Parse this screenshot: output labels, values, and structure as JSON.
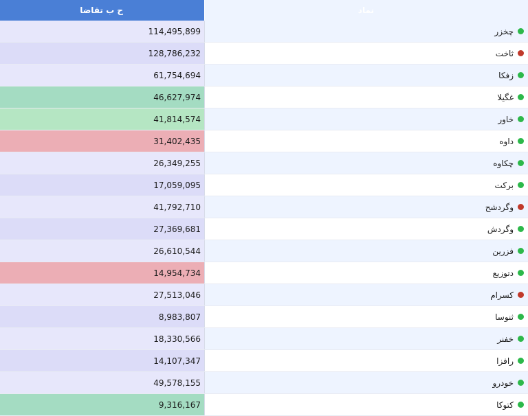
{
  "header": {
    "value_label": "ح ب تقاضا",
    "symbol_label": "نماد"
  },
  "colors": {
    "header_value_bg": "#4a7fd6",
    "header_symbol_bg": "#6a95de",
    "status_green": "#2db84a",
    "status_red": "#c0392b",
    "cell_neutral_light": "#e7e7fb",
    "cell_neutral": "#dcdcf8",
    "cell_green": "#a4dcc2",
    "cell_green_light": "#b5e6c3",
    "cell_red": "#ecaeb5"
  },
  "rows": [
    {
      "symbol": "چخزر",
      "status": "green",
      "value": "114,495,899",
      "shade": "cell_neutral_light"
    },
    {
      "symbol": "ثاخت",
      "status": "red",
      "value": "128,786,232",
      "shade": "cell_neutral"
    },
    {
      "symbol": "زفکا",
      "status": "green",
      "value": "61,754,694",
      "shade": "cell_neutral_light"
    },
    {
      "symbol": "غگیلا",
      "status": "green",
      "value": "46,627,974",
      "shade": "cell_green"
    },
    {
      "symbol": "خاور",
      "status": "green",
      "value": "41,814,574",
      "shade": "cell_green_light"
    },
    {
      "symbol": "داوه",
      "status": "green",
      "value": "31,402,435",
      "shade": "cell_red"
    },
    {
      "symbol": "چکاوه",
      "status": "green",
      "value": "26,349,255",
      "shade": "cell_neutral_light"
    },
    {
      "symbol": "برکت",
      "status": "green",
      "value": "17,059,095",
      "shade": "cell_neutral"
    },
    {
      "symbol": "وگردشح",
      "status": "red",
      "value": "41,792,710",
      "shade": "cell_neutral_light"
    },
    {
      "symbol": "وگردش",
      "status": "green",
      "value": "27,369,681",
      "shade": "cell_neutral"
    },
    {
      "symbol": "فزرین",
      "status": "green",
      "value": "26,610,544",
      "shade": "cell_neutral_light"
    },
    {
      "symbol": "دتوزیع",
      "status": "green",
      "value": "14,954,734",
      "shade": "cell_red"
    },
    {
      "symbol": "کسرام",
      "status": "red",
      "value": "27,513,046",
      "shade": "cell_neutral_light"
    },
    {
      "symbol": "ثنوسا",
      "status": "green",
      "value": "8,983,807",
      "shade": "cell_neutral"
    },
    {
      "symbol": "خفنر",
      "status": "green",
      "value": "18,330,566",
      "shade": "cell_neutral_light"
    },
    {
      "symbol": "رافزا",
      "status": "green",
      "value": "14,107,347",
      "shade": "cell_neutral"
    },
    {
      "symbol": "خودرو",
      "status": "green",
      "value": "49,578,155",
      "shade": "cell_neutral_light"
    },
    {
      "symbol": "کتوکا",
      "status": "green",
      "value": "9,316,167",
      "shade": "cell_green"
    }
  ]
}
